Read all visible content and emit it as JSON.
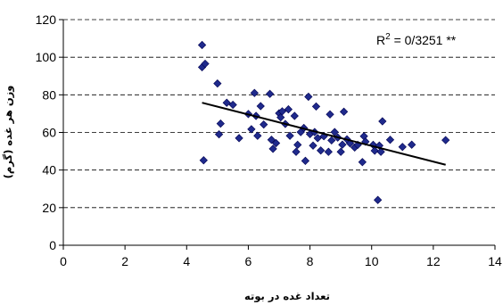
{
  "chart_data": {
    "type": "scatter",
    "title": "",
    "xlabel": "تعداد غده در بوته",
    "ylabel": "وزن هر غده (گرم)",
    "xlim": [
      0,
      14
    ],
    "ylim": [
      0,
      120
    ],
    "x_ticks": [
      0,
      2,
      4,
      6,
      8,
      10,
      12,
      14
    ],
    "y_ticks": [
      0,
      20,
      40,
      60,
      80,
      100,
      120
    ],
    "grid": {
      "horizontal": true,
      "style": "dashed"
    },
    "marker": {
      "shape": "diamond",
      "color": "#1f2a8c",
      "edge": "#000050"
    },
    "annotation": {
      "prefix": "R",
      "superscript": "2",
      "text": " = 0/3251 **"
    },
    "trendline": {
      "x": [
        4.5,
        12.4
      ],
      "y": [
        75.8,
        42.8
      ],
      "color": "#000000"
    },
    "points": [
      [
        4.5,
        106.5
      ],
      [
        4.5,
        94.7
      ],
      [
        4.6,
        96.5
      ],
      [
        4.55,
        45.2
      ],
      [
        5.0,
        86.0
      ],
      [
        5.05,
        59.0
      ],
      [
        5.1,
        64.7
      ],
      [
        5.3,
        75.8
      ],
      [
        5.5,
        74.7
      ],
      [
        5.7,
        57.0
      ],
      [
        6.0,
        69.8
      ],
      [
        6.1,
        61.7
      ],
      [
        6.2,
        81.0
      ],
      [
        6.25,
        68.8
      ],
      [
        6.3,
        58.2
      ],
      [
        6.4,
        74.0
      ],
      [
        6.5,
        64.2
      ],
      [
        6.7,
        80.5
      ],
      [
        6.75,
        56.1
      ],
      [
        6.8,
        51.3
      ],
      [
        6.9,
        54.3
      ],
      [
        7.0,
        70.2
      ],
      [
        7.05,
        68.0
      ],
      [
        7.1,
        71.2
      ],
      [
        7.2,
        64.5
      ],
      [
        7.3,
        72.3
      ],
      [
        7.35,
        58.2
      ],
      [
        7.5,
        68.8
      ],
      [
        7.55,
        49.7
      ],
      [
        7.6,
        53.4
      ],
      [
        7.7,
        60.2
      ],
      [
        7.8,
        62.4
      ],
      [
        7.85,
        44.9
      ],
      [
        7.95,
        79.0
      ],
      [
        8.0,
        59.1
      ],
      [
        8.1,
        53.0
      ],
      [
        8.15,
        60.2
      ],
      [
        8.2,
        73.8
      ],
      [
        8.25,
        57.0
      ],
      [
        8.35,
        50.4
      ],
      [
        8.45,
        58.0
      ],
      [
        8.6,
        49.7
      ],
      [
        8.65,
        69.6
      ],
      [
        8.7,
        55.8
      ],
      [
        8.8,
        60.2
      ],
      [
        8.9,
        57.3
      ],
      [
        9.0,
        49.7
      ],
      [
        9.05,
        53.5
      ],
      [
        9.1,
        71.0
      ],
      [
        9.2,
        56.3
      ],
      [
        9.3,
        54.2
      ],
      [
        9.45,
        52.0
      ],
      [
        9.55,
        53.4
      ],
      [
        9.7,
        44.2
      ],
      [
        9.75,
        58.0
      ],
      [
        9.8,
        55.1
      ],
      [
        10.05,
        53.4
      ],
      [
        10.1,
        50.3
      ],
      [
        10.2,
        24.1
      ],
      [
        10.25,
        53.0
      ],
      [
        10.3,
        49.7
      ],
      [
        10.35,
        65.9
      ],
      [
        10.6,
        56.1
      ],
      [
        11.0,
        52.3
      ],
      [
        11.3,
        53.5
      ],
      [
        12.4,
        55.9
      ]
    ]
  }
}
